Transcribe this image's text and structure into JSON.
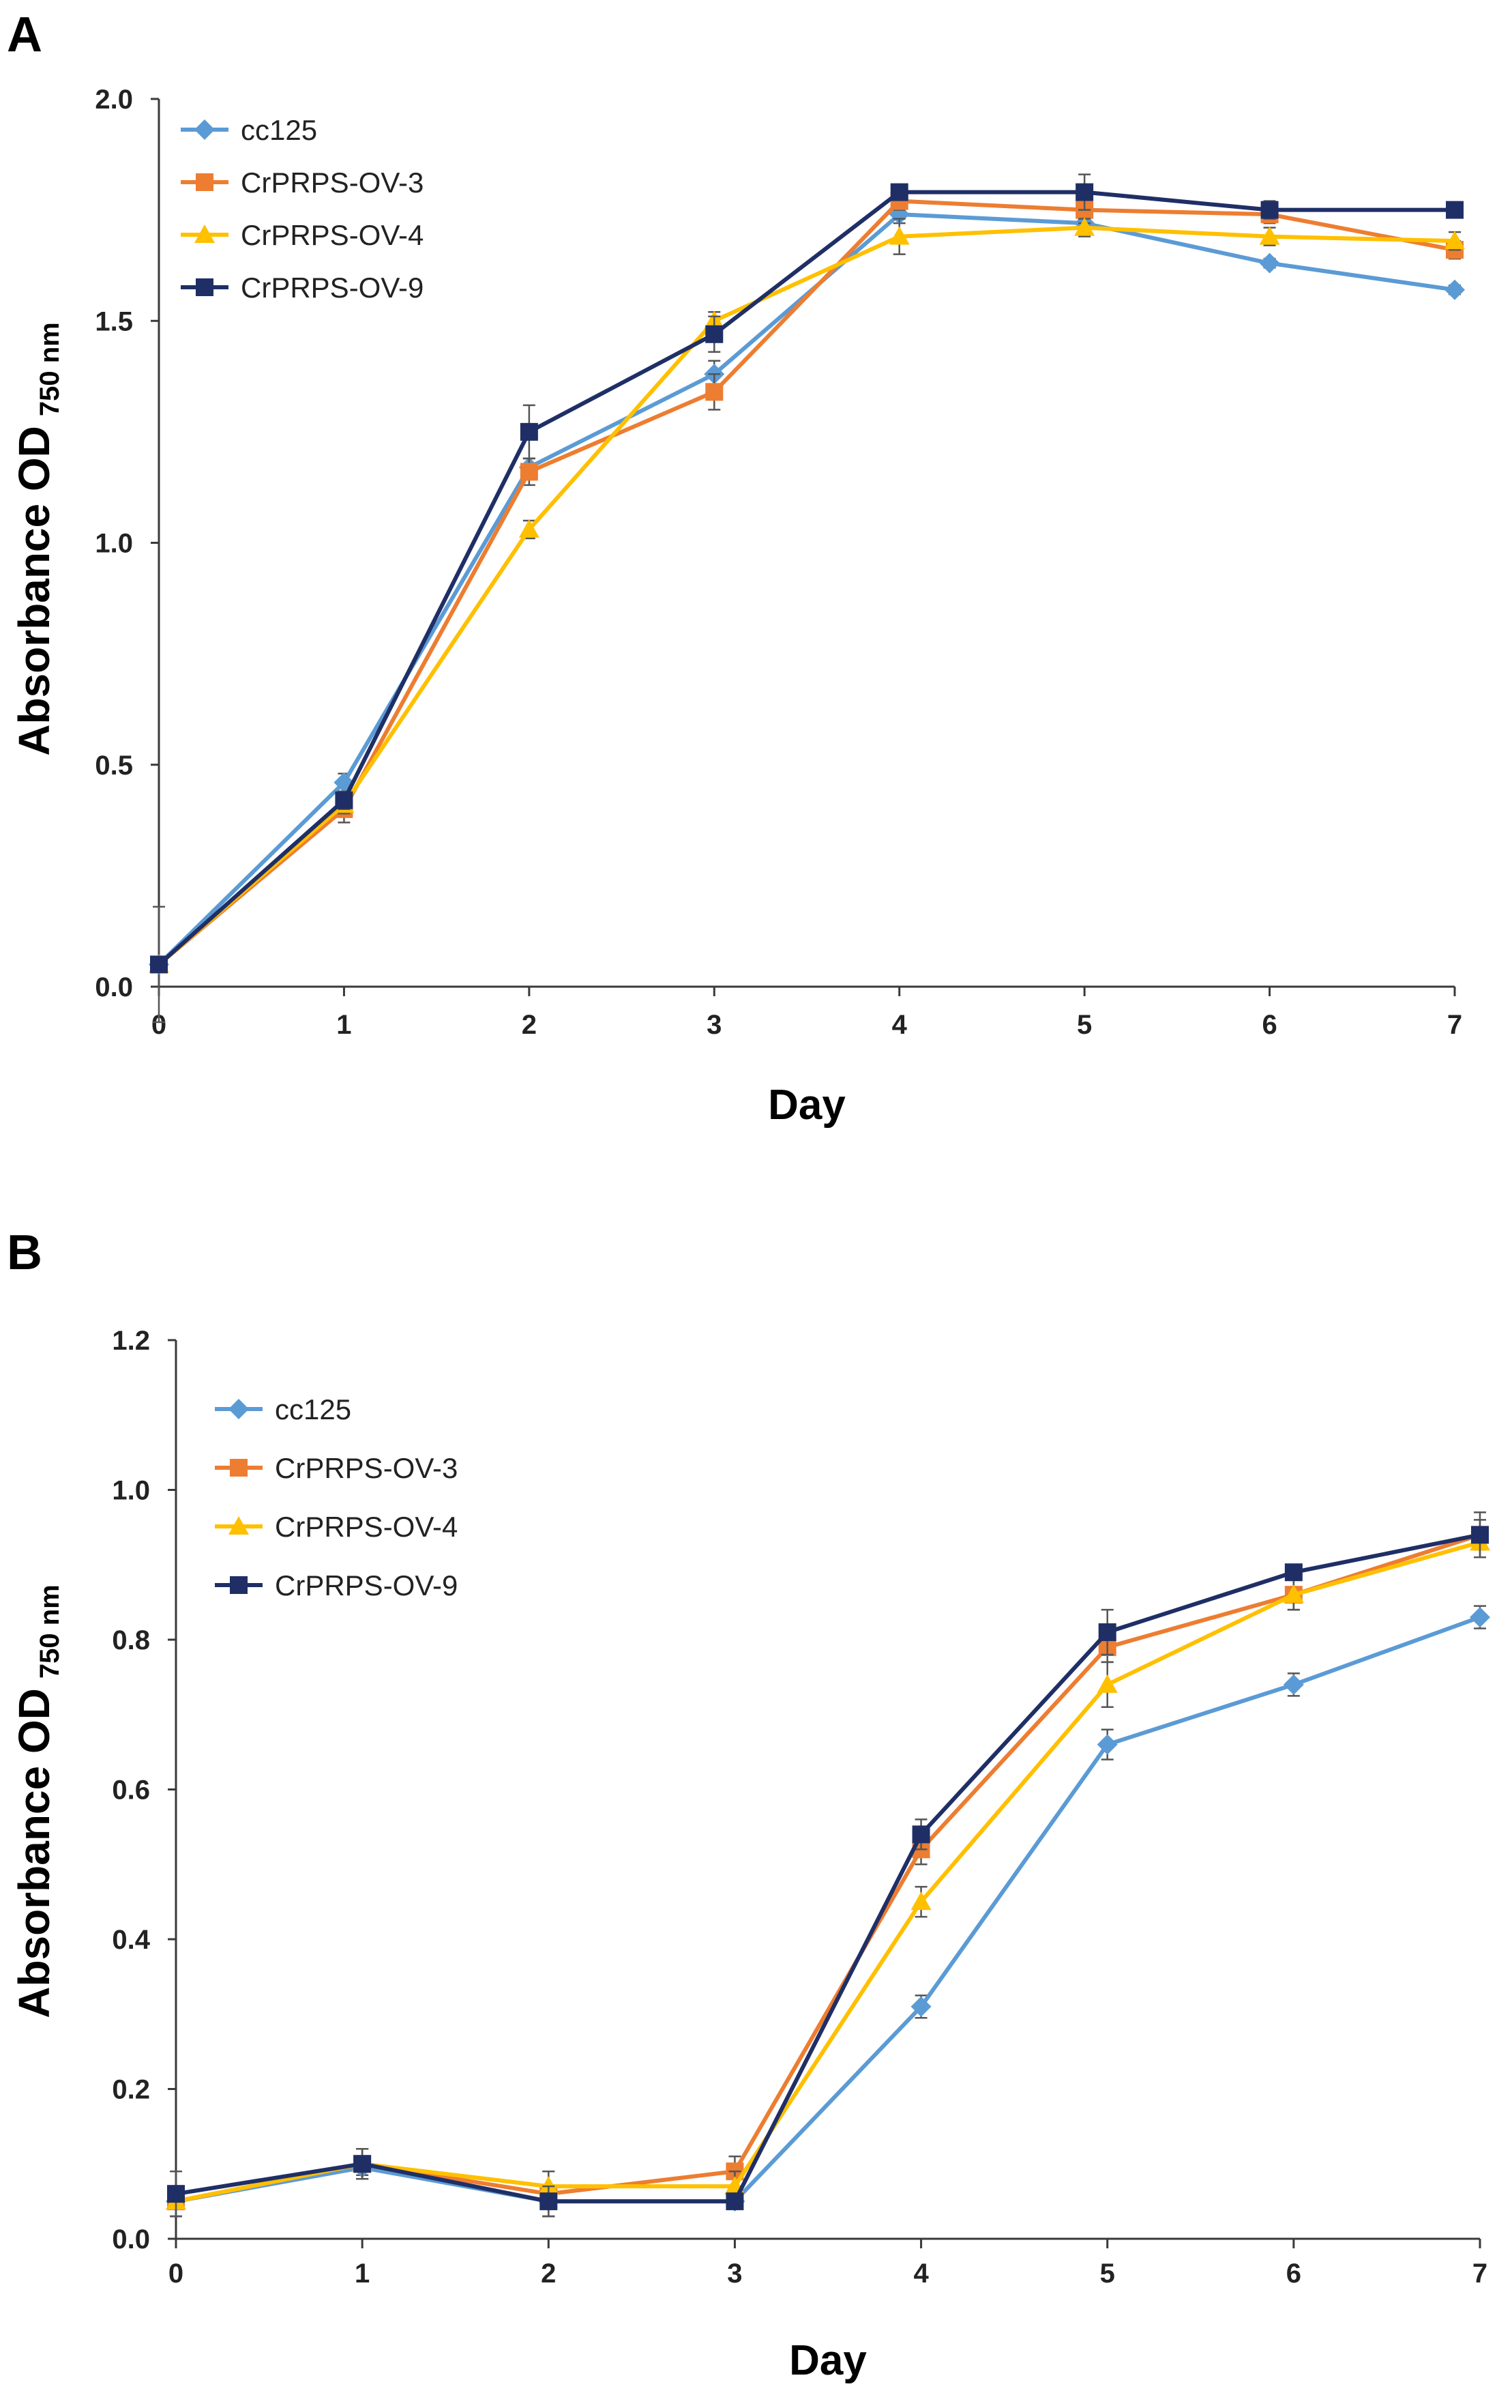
{
  "chart_data": [
    {
      "panel": "A",
      "type": "line",
      "title": "",
      "xlabel": "Day",
      "ylabel_main": "Absorbance OD",
      "ylabel_sub": "750 nm",
      "x": [
        0,
        1,
        2,
        3,
        4,
        5,
        6,
        7
      ],
      "xlim": [
        0,
        7
      ],
      "ylim": [
        0,
        2.0
      ],
      "yticks": [
        "0.0",
        "0.5",
        "1.0",
        "1.5",
        "2.0"
      ],
      "yticks_values": [
        0,
        0.5,
        1.0,
        1.5,
        2.0
      ],
      "xticks": [
        "0",
        "1",
        "2",
        "3",
        "4",
        "5",
        "6",
        "7"
      ],
      "grid": false,
      "legend": "top-left",
      "series": [
        {
          "name": "cc125",
          "color": "#5B9BD5",
          "marker": "diamond",
          "values": [
            0.05,
            0.46,
            1.17,
            1.38,
            1.74,
            1.72,
            1.63,
            1.57
          ],
          "errors": [
            0.13,
            0.02,
            0.02,
            0.03,
            0.02,
            0.02,
            0.01,
            0.01
          ]
        },
        {
          "name": "CrPRPS-OV-3",
          "color": "#ED7D31",
          "marker": "square",
          "values": [
            0.05,
            0.4,
            1.16,
            1.34,
            1.77,
            1.75,
            1.74,
            1.66
          ],
          "errors": [
            0.01,
            0.03,
            0.03,
            0.04,
            0.02,
            0.03,
            0.02,
            0.02
          ]
        },
        {
          "name": "CrPRPS-OV-4",
          "color": "#FFC000",
          "marker": "triangle",
          "values": [
            0.05,
            0.41,
            1.03,
            1.5,
            1.69,
            1.71,
            1.69,
            1.68
          ],
          "errors": [
            0.01,
            0.02,
            0.02,
            0.02,
            0.04,
            0.02,
            0.02,
            0.02
          ]
        },
        {
          "name": "CrPRPS-OV-9",
          "color": "#1F2F66",
          "marker": "square",
          "values": [
            0.05,
            0.42,
            1.25,
            1.47,
            1.79,
            1.79,
            1.75,
            1.75
          ],
          "errors": [
            0.01,
            0.02,
            0.06,
            0.04,
            0.01,
            0.04,
            0.02,
            0.01
          ]
        }
      ]
    },
    {
      "panel": "B",
      "type": "line",
      "title": "",
      "xlabel": "Day",
      "ylabel_main": "Absorbance OD",
      "ylabel_sub": "750 nm",
      "x": [
        0,
        1,
        2,
        3,
        4,
        5,
        6,
        7
      ],
      "xlim": [
        0,
        7
      ],
      "ylim": [
        0,
        1.2
      ],
      "yticks": [
        "0.0",
        "0.2",
        "0.4",
        "0.6",
        "0.8",
        "1.0",
        "1.2"
      ],
      "yticks_values": [
        0,
        0.2,
        0.4,
        0.6,
        0.8,
        1.0,
        1.2
      ],
      "xticks": [
        "0",
        "1",
        "2",
        "3",
        "4",
        "5",
        "6",
        "7"
      ],
      "grid": false,
      "legend": "top-left",
      "series": [
        {
          "name": "cc125",
          "color": "#5B9BD5",
          "marker": "diamond",
          "values": [
            0.05,
            0.095,
            0.05,
            0.05,
            0.31,
            0.66,
            0.74,
            0.83
          ],
          "errors": [
            0.02,
            0.01,
            0.02,
            0.01,
            0.015,
            0.02,
            0.015,
            0.015
          ]
        },
        {
          "name": "CrPRPS-OV-3",
          "color": "#ED7D31",
          "marker": "square",
          "values": [
            0.05,
            0.1,
            0.06,
            0.09,
            0.52,
            0.79,
            0.86,
            0.94
          ],
          "errors": [
            0.02,
            0.02,
            0.03,
            0.02,
            0.02,
            0.02,
            0.02,
            0.02
          ]
        },
        {
          "name": "CrPRPS-OV-4",
          "color": "#FFC000",
          "marker": "triangle",
          "values": [
            0.05,
            0.1,
            0.07,
            0.07,
            0.45,
            0.74,
            0.86,
            0.93
          ],
          "errors": [
            0.02,
            0.02,
            0.02,
            0.02,
            0.02,
            0.03,
            0.02,
            0.02
          ]
        },
        {
          "name": "CrPRPS-OV-9",
          "color": "#1F2F66",
          "marker": "square",
          "values": [
            0.06,
            0.1,
            0.05,
            0.05,
            0.54,
            0.81,
            0.89,
            0.94
          ],
          "errors": [
            0.03,
            0.02,
            0.02,
            0.01,
            0.02,
            0.03,
            0.01,
            0.03
          ]
        }
      ]
    }
  ]
}
